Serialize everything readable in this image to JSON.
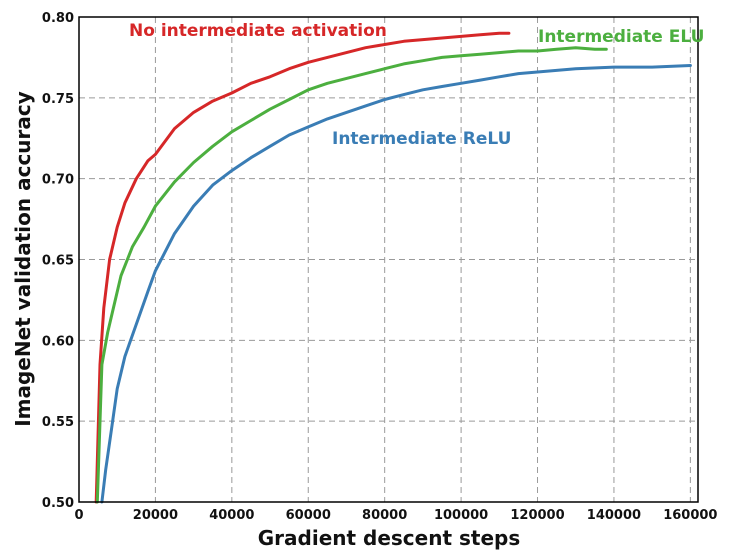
{
  "chart_data": {
    "type": "line",
    "xlabel": "Gradient descent steps",
    "ylabel": "ImageNet validation accuracy",
    "xlim": [
      0,
      162000
    ],
    "ylim": [
      0.5,
      0.8
    ],
    "x_ticks": [
      0,
      20000,
      40000,
      60000,
      80000,
      100000,
      120000,
      140000,
      160000
    ],
    "x_tick_labels": [
      "0",
      "20000",
      "40000",
      "60000",
      "80000",
      "100000",
      "120000",
      "140000",
      "160000"
    ],
    "y_ticks": [
      0.5,
      0.55,
      0.6,
      0.65,
      0.7,
      0.75,
      0.8
    ],
    "y_tick_labels": [
      "0.50",
      "0.55",
      "0.60",
      "0.65",
      "0.70",
      "0.75",
      "0.80"
    ],
    "grid": true,
    "series": [
      {
        "name": "No intermediate activation",
        "color": "#d62728",
        "x": [
          4500,
          5500,
          6500,
          8000,
          10000,
          12000,
          15000,
          18000,
          20000,
          25000,
          30000,
          35000,
          40000,
          45000,
          50000,
          55000,
          60000,
          65000,
          70000,
          75000,
          80000,
          85000,
          90000,
          95000,
          100000,
          105000,
          110000,
          112500
        ],
        "y": [
          0.5,
          0.585,
          0.62,
          0.65,
          0.67,
          0.685,
          0.7,
          0.711,
          0.715,
          0.731,
          0.741,
          0.748,
          0.753,
          0.759,
          0.763,
          0.768,
          0.772,
          0.775,
          0.778,
          0.781,
          0.783,
          0.785,
          0.786,
          0.787,
          0.788,
          0.789,
          0.79,
          0.79
        ]
      },
      {
        "name": "Intermediate ELU",
        "color": "#4caf3f",
        "x": [
          4800,
          6000,
          7500,
          9000,
          11000,
          14000,
          17000,
          20000,
          25000,
          30000,
          35000,
          40000,
          45000,
          50000,
          55000,
          60000,
          65000,
          70000,
          75000,
          80000,
          85000,
          90000,
          95000,
          100000,
          105000,
          110000,
          115000,
          120000,
          125000,
          130000,
          135000,
          138000
        ],
        "y": [
          0.5,
          0.585,
          0.605,
          0.62,
          0.64,
          0.658,
          0.67,
          0.683,
          0.698,
          0.71,
          0.72,
          0.729,
          0.736,
          0.743,
          0.749,
          0.755,
          0.759,
          0.762,
          0.765,
          0.768,
          0.771,
          0.773,
          0.775,
          0.776,
          0.777,
          0.778,
          0.779,
          0.779,
          0.78,
          0.781,
          0.78,
          0.78
        ]
      },
      {
        "name": "Intermediate ReLU",
        "color": "#3a7db5",
        "x": [
          6000,
          7000,
          8500,
          10000,
          12000,
          15000,
          18000,
          20000,
          25000,
          30000,
          35000,
          40000,
          45000,
          50000,
          55000,
          60000,
          65000,
          70000,
          75000,
          80000,
          85000,
          90000,
          95000,
          100000,
          105000,
          110000,
          115000,
          120000,
          125000,
          130000,
          140000,
          150000,
          160000
        ],
        "y": [
          0.5,
          0.52,
          0.545,
          0.57,
          0.59,
          0.61,
          0.63,
          0.643,
          0.666,
          0.683,
          0.696,
          0.705,
          0.713,
          0.72,
          0.727,
          0.732,
          0.737,
          0.741,
          0.745,
          0.749,
          0.752,
          0.755,
          0.757,
          0.759,
          0.761,
          0.763,
          0.765,
          0.766,
          0.767,
          0.768,
          0.769,
          0.769,
          0.77
        ]
      }
    ]
  }
}
